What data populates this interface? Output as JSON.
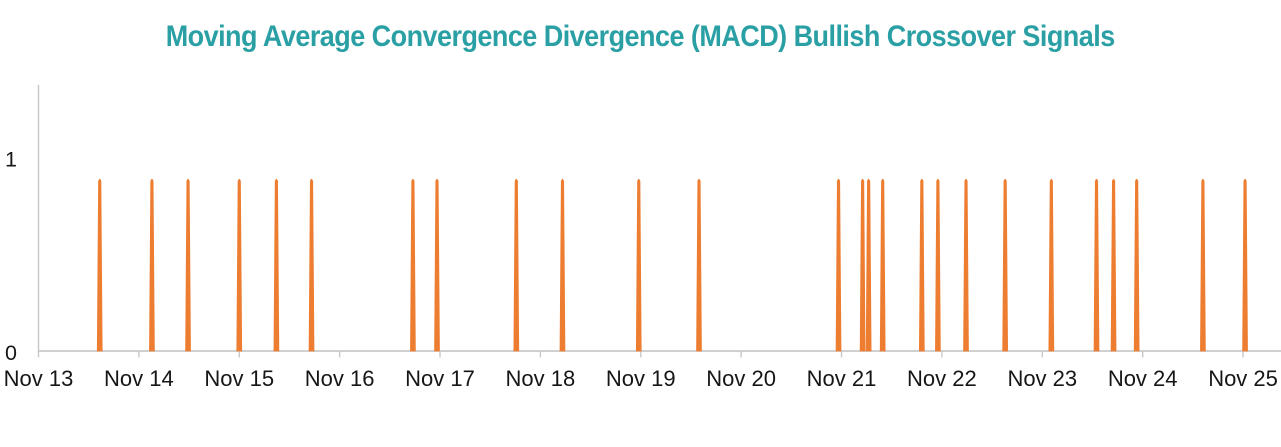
{
  "chart_data": {
    "type": "bar",
    "title": "Moving Average Convergence Divergence (MACD) Bullish Crossover Signals",
    "subtitle": "",
    "xlabel": "",
    "ylabel": "",
    "x_tick_labels": [
      "Nov 13",
      "Nov 14",
      "Nov 15",
      "Nov 16",
      "Nov 17",
      "Nov 18",
      "Nov 19",
      "Nov 20",
      "Nov 21",
      "Nov 22",
      "Nov 23",
      "Nov 24",
      "Nov 25"
    ],
    "y_tick_labels": [
      "0",
      "1"
    ],
    "y_ticks": [
      0,
      1
    ],
    "xlim_days_from_nov13": [
      0,
      12.38
    ],
    "ylim": [
      0,
      1.39
    ],
    "grid": false,
    "legend": false,
    "series": [
      {
        "name": "MACD bullish crossover signal",
        "x_days_from_nov13": [
          0.61,
          1.13,
          1.49,
          2.0,
          2.37,
          2.72,
          3.73,
          3.97,
          4.76,
          5.22,
          5.98,
          6.58,
          7.97,
          8.21,
          8.27,
          8.41,
          8.8,
          8.96,
          9.24,
          9.63,
          10.09,
          10.54,
          10.71,
          10.94,
          11.6,
          12.02
        ],
        "y": [
          0.91,
          0.91,
          0.91,
          0.91,
          0.91,
          0.91,
          0.91,
          0.91,
          0.91,
          0.91,
          0.91,
          0.91,
          0.91,
          0.91,
          0.91,
          0.91,
          0.91,
          0.91,
          0.91,
          0.91,
          0.91,
          0.91,
          0.91,
          0.91,
          0.91,
          0.91
        ]
      }
    ],
    "colors": {
      "title": "#2aa0a5",
      "bar": "#ed7d31",
      "axis": "#c9c9c9",
      "tick_label": "#161616"
    }
  }
}
